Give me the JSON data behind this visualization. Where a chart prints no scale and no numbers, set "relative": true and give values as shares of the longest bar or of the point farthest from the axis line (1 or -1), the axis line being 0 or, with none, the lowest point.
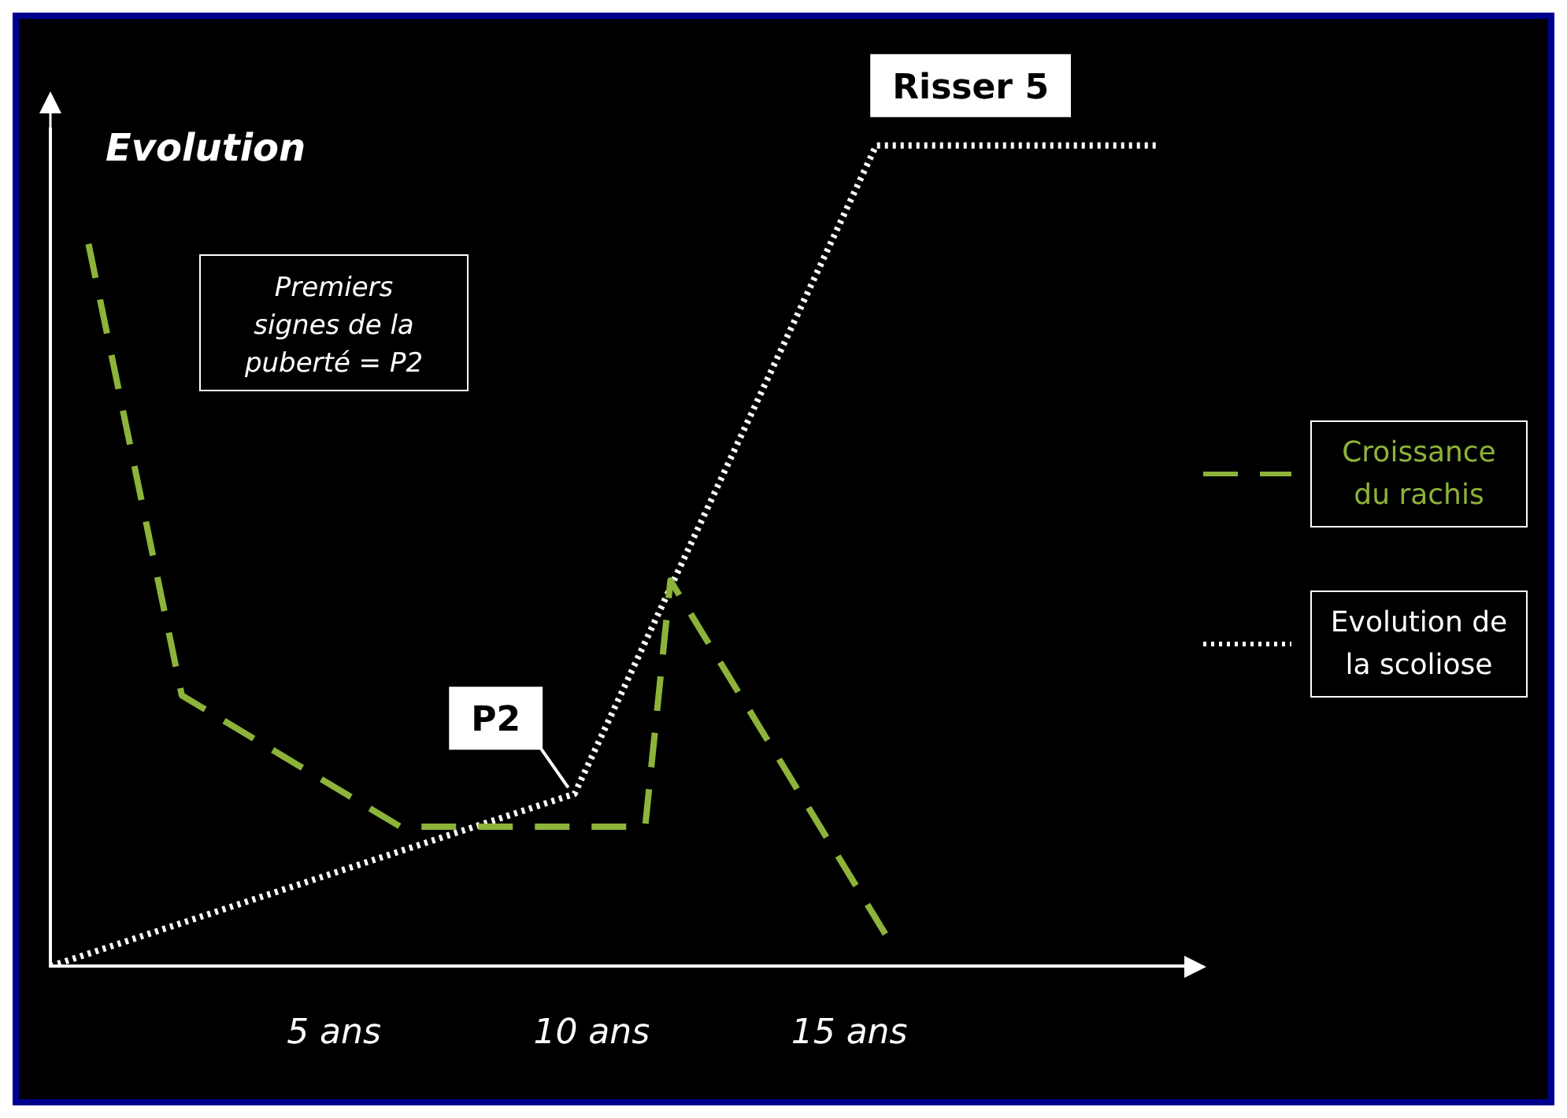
{
  "chart_data": {
    "type": "line",
    "relative": true,
    "ylabel": "Evolution",
    "xlim": [
      -0.5,
      21.5
    ],
    "xticks": [
      {
        "value": 5,
        "label": "5 ans"
      },
      {
        "value": 10,
        "label": "10 ans"
      },
      {
        "value": 15,
        "label": "15 ans"
      }
    ],
    "series": [
      {
        "name": "Croissance du rachis",
        "color": "#8db33a",
        "line_style": "dashed",
        "x": [
          0.24,
          2.05,
          6.29,
          11.04,
          11.53,
          15.74
        ],
        "values": [
          0.88,
          0.33,
          0.17,
          0.17,
          0.47,
          0.035
        ]
      },
      {
        "name": "Evolution de la scoliose",
        "color": "#ffffff",
        "line_style": "dotted",
        "x": [
          -0.5,
          9.67,
          15.52,
          21.01
        ],
        "values": [
          0,
          0.21,
          1,
          1
        ]
      }
    ],
    "annotations": [
      "Premiers signes de la puberté = P2",
      {
        "text": "P2",
        "x": 9.67,
        "y": 0.21
      },
      {
        "text": "Risser 5",
        "x": 15.52,
        "y": 1
      }
    ],
    "legend": "right",
    "grid": false,
    "marker": "none"
  }
}
